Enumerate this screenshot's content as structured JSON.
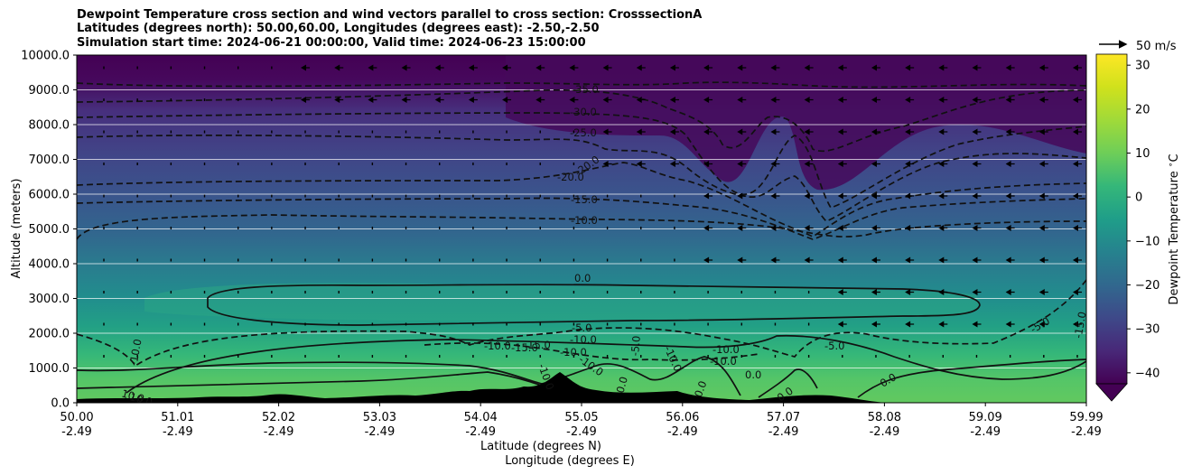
{
  "chart_data": {
    "type": "heatmap",
    "title_lines": [
      "Dewpoint Temperature cross section and wind vectors parallel to cross section: CrosssectionA",
      "Latitudes (degrees north): 50.00,60.00, Longitudes (degrees east): -2.50,-2.50",
      "Simulation start time: 2024-06-21 00:00:00, Valid time: 2024-06-23 15:00:00"
    ],
    "ylabel": "Altitude (meters)",
    "xlabel_lines": [
      "Latitude (degrees N)",
      "Longitude (degrees E)"
    ],
    "ylim": [
      0,
      10000
    ],
    "xlim": [
      50.0,
      59.99
    ],
    "y_ticks": [
      "0.0",
      "1000.0",
      "2000.0",
      "3000.0",
      "4000.0",
      "5000.0",
      "6000.0",
      "7000.0",
      "8000.0",
      "9000.0",
      "10000.0"
    ],
    "x_ticks": [
      {
        "lat": "50.00",
        "lon": "-2.49"
      },
      {
        "lat": "51.01",
        "lon": "-2.49"
      },
      {
        "lat": "52.02",
        "lon": "-2.49"
      },
      {
        "lat": "53.03",
        "lon": "-2.49"
      },
      {
        "lat": "54.04",
        "lon": "-2.49"
      },
      {
        "lat": "55.05",
        "lon": "-2.49"
      },
      {
        "lat": "56.06",
        "lon": "-2.49"
      },
      {
        "lat": "57.07",
        "lon": "-2.49"
      },
      {
        "lat": "58.08",
        "lon": "-2.49"
      },
      {
        "lat": "59.09",
        "lon": "-2.49"
      },
      {
        "lat": "59.99",
        "lon": "-2.49"
      }
    ],
    "grid": "horizontal",
    "colorbar": {
      "label": "Dewpoint Temperature $^\\circ$C",
      "ticks": [
        "30",
        "20",
        "10",
        "0",
        "−10",
        "−20",
        "−30",
        "−40"
      ],
      "range": [
        -42.5,
        32.5
      ],
      "extend": "min",
      "colormap": "viridis"
    },
    "wind_key": {
      "label": "50 m/s"
    },
    "contour_labels": [
      "-35.0",
      "-30.0",
      "-25.0",
      "-20.0",
      "-20.0",
      "-15.0",
      "-10.0",
      "0.0",
      "-5.0",
      "-10.0",
      "-10.0",
      "-15.0",
      "-10.0",
      "-10.0",
      "-5.0",
      "-5.0",
      "-15.0",
      "-10.0",
      "10.0",
      "10.0",
      "0.0",
      "0.0",
      "0.0",
      "0.0",
      "-10.0",
      "-10.0",
      "-10.0",
      "-10.0",
      "-15.0",
      "-5.0",
      "0.0"
    ],
    "approximate_dewpoint_profile": [
      {
        "altitude_m": 0,
        "dewpoint_c": 10
      },
      {
        "altitude_m": 1000,
        "dewpoint_c": 5
      },
      {
        "altitude_m": 2000,
        "dewpoint_c": -4
      },
      {
        "altitude_m": 3000,
        "dewpoint_c": 0
      },
      {
        "altitude_m": 4000,
        "dewpoint_c": -7
      },
      {
        "altitude_m": 5000,
        "dewpoint_c": -12
      },
      {
        "altitude_m": 6000,
        "dewpoint_c": -18
      },
      {
        "altitude_m": 7000,
        "dewpoint_c": -24
      },
      {
        "altitude_m": 8000,
        "dewpoint_c": -30
      },
      {
        "altitude_m": 9000,
        "dewpoint_c": -36
      },
      {
        "altitude_m": 10000,
        "dewpoint_c": -42
      }
    ]
  }
}
